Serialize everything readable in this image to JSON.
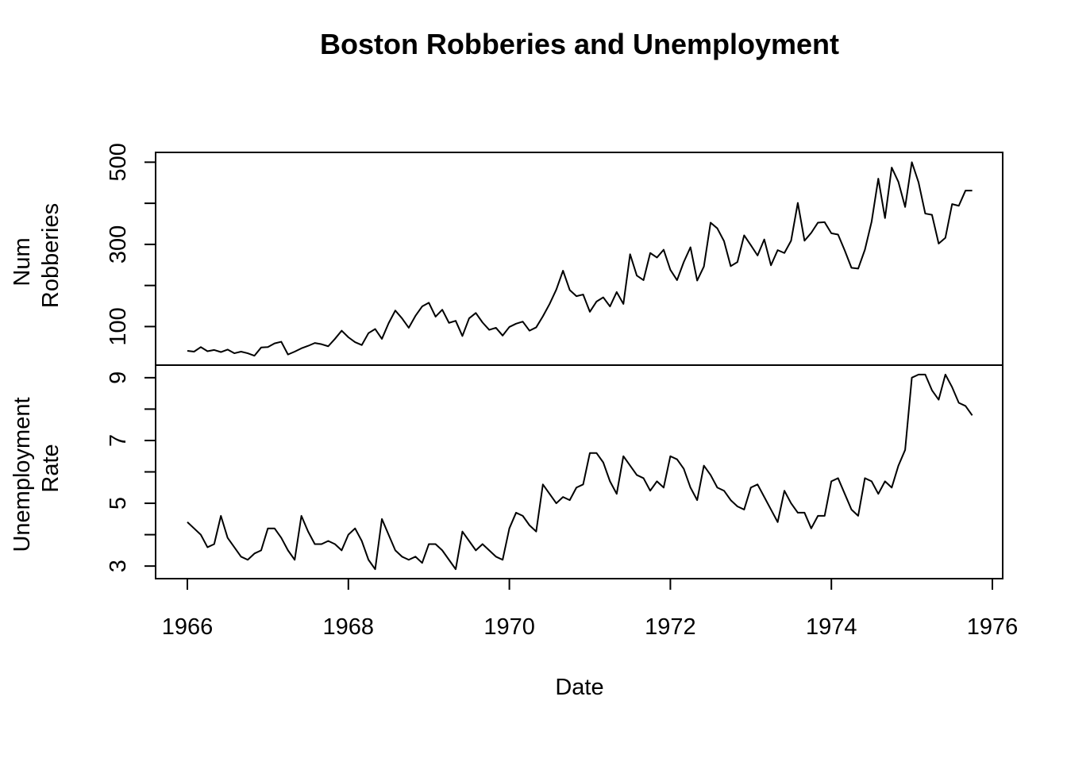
{
  "chart_data": {
    "type": "line",
    "title": "Boston Robberies and Unemployment",
    "xlabel": "Date",
    "x_ticks": [
      "1966",
      "1968",
      "1970",
      "1972",
      "1974",
      "1976"
    ],
    "x_range": [
      1966,
      1976
    ],
    "x_start": 1966,
    "x_step": 0.08333,
    "panels": [
      {
        "name": "robberies",
        "ylabel_lines": [
          "Num",
          "Robberies"
        ],
        "y_ticks": [
          100,
          200,
          300,
          400,
          500
        ],
        "y_tick_labels": [
          "100",
          "",
          "300",
          "",
          "500"
        ],
        "ylim": [
          10,
          520
        ],
        "values": [
          41,
          39,
          50,
          40,
          43,
          38,
          44,
          35,
          39,
          35,
          29,
          49,
          50,
          59,
          63,
          32,
          39,
          47,
          53,
          60,
          57,
          52,
          70,
          90,
          74,
          62,
          55,
          84,
          94,
          70,
          108,
          139,
          120,
          97,
          126,
          149,
          158,
          124,
          141,
          109,
          114,
          77,
          120,
          133,
          110,
          92,
          97,
          78,
          99,
          107,
          112,
          90,
          98,
          125,
          155,
          190,
          236,
          189,
          174,
          178,
          136,
          161,
          171,
          149,
          184,
          155,
          276,
          224,
          213,
          279,
          268,
          287,
          238,
          213,
          257,
          293,
          212,
          246,
          353,
          339,
          308,
          247,
          257,
          322,
          298,
          273,
          312,
          249,
          286,
          279,
          309,
          401,
          309,
          328,
          353,
          354,
          327,
          324,
          285,
          243,
          241,
          287,
          355,
          460,
          364,
          487,
          452,
          391,
          500,
          451,
          375,
          372,
          302,
          316,
          398,
          394,
          431,
          431
        ]
      },
      {
        "name": "unemployment",
        "ylabel_lines": [
          "Unemployment",
          "Rate"
        ],
        "y_ticks": [
          3,
          4,
          5,
          6,
          7,
          8,
          9
        ],
        "y_tick_labels": [
          "3",
          "",
          "5",
          "",
          "7",
          "",
          "9"
        ],
        "ylim": [
          2.65,
          9.35
        ],
        "values": [
          4.4,
          4.2,
          4.0,
          3.6,
          3.7,
          4.6,
          3.9,
          3.6,
          3.3,
          3.2,
          3.4,
          3.5,
          4.2,
          4.2,
          3.9,
          3.5,
          3.2,
          4.6,
          4.1,
          3.7,
          3.7,
          3.8,
          3.7,
          3.5,
          4.0,
          4.2,
          3.8,
          3.2,
          2.9,
          4.5,
          4.0,
          3.5,
          3.3,
          3.2,
          3.3,
          3.1,
          3.7,
          3.7,
          3.5,
          3.2,
          2.9,
          4.1,
          3.8,
          3.5,
          3.7,
          3.5,
          3.3,
          3.2,
          4.2,
          4.7,
          4.6,
          4.3,
          4.1,
          5.6,
          5.3,
          5.0,
          5.2,
          5.1,
          5.5,
          5.6,
          6.6,
          6.6,
          6.3,
          5.7,
          5.3,
          6.5,
          6.2,
          5.9,
          5.8,
          5.4,
          5.7,
          5.5,
          6.5,
          6.4,
          6.1,
          5.5,
          5.1,
          6.2,
          5.9,
          5.5,
          5.4,
          5.1,
          4.9,
          4.8,
          5.5,
          5.6,
          5.2,
          4.8,
          4.4,
          5.4,
          5.0,
          4.7,
          4.7,
          4.2,
          4.6,
          4.6,
          5.7,
          5.8,
          5.3,
          4.8,
          4.6,
          5.8,
          5.7,
          5.3,
          5.7,
          5.5,
          6.2,
          6.7,
          9.0,
          9.1,
          9.1,
          8.6,
          8.3,
          9.1,
          8.7,
          8.2,
          8.1,
          7.8
        ]
      }
    ],
    "grid": false,
    "legend": "none"
  }
}
